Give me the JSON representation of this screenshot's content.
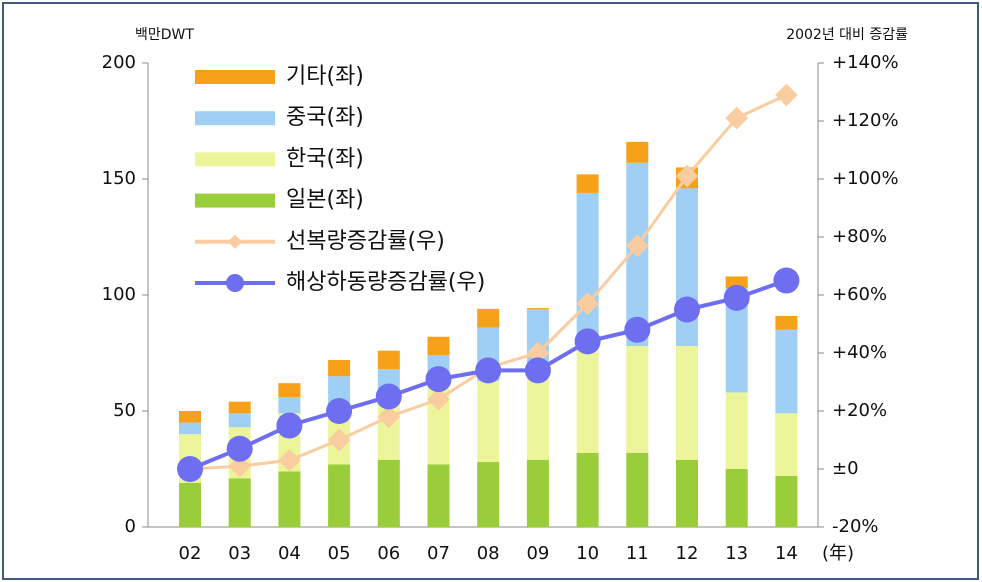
{
  "chart_data": {
    "type": "bar",
    "left_unit": "백만DWT",
    "right_unit": "2002년 대비 증감률",
    "x_unit": "(年)",
    "categories": [
      "02",
      "03",
      "04",
      "05",
      "06",
      "07",
      "08",
      "09",
      "10",
      "11",
      "12",
      "13",
      "14"
    ],
    "series": [
      {
        "name": "일본(좌)",
        "type": "bar",
        "color": "#9acd3a",
        "values": [
          19,
          21,
          24,
          27,
          29,
          27,
          28,
          29,
          32,
          32,
          29,
          25,
          22
        ]
      },
      {
        "name": "한국(좌)",
        "type": "bar",
        "color": "#edf59a",
        "values": [
          21,
          22,
          25,
          25,
          29,
          40,
          35,
          39,
          48,
          46,
          49,
          33,
          27
        ]
      },
      {
        "name": "중국(좌)",
        "type": "bar",
        "color": "#9fcff5",
        "values": [
          5,
          6,
          7,
          13,
          10,
          7,
          23,
          26,
          64,
          79,
          68,
          45,
          36
        ]
      },
      {
        "name": "기타(좌)",
        "type": "bar",
        "color": "#f7a11a",
        "values": [
          5,
          5,
          6,
          7,
          8,
          8,
          8,
          6,
          8,
          9,
          9,
          5,
          6
        ]
      },
      {
        "name": "선복량증감률(우)",
        "type": "line",
        "marker": "diamond",
        "axis": "y2",
        "color": "#f9cd9f",
        "values": [
          0,
          1,
          3,
          10,
          18,
          24,
          35,
          40,
          57,
          77,
          101,
          121,
          129
        ]
      },
      {
        "name": "해상하동량증감률(우)",
        "type": "line",
        "marker": "circle",
        "axis": "y2",
        "color": "#6e6ef0",
        "values": [
          0,
          7,
          15,
          20,
          25,
          31,
          34,
          34,
          44,
          48,
          55,
          59,
          65
        ]
      }
    ],
    "ylim": [
      0,
      200
    ],
    "yticks": [
      0,
      50,
      100,
      150,
      200
    ],
    "y2lim": [
      -20,
      140
    ],
    "y2ticks": [
      {
        "value": -20,
        "label": "-20%"
      },
      {
        "value": 0,
        "label": "±0"
      },
      {
        "value": 20,
        "label": "+20%"
      },
      {
        "value": 40,
        "label": "+40%"
      },
      {
        "value": 60,
        "label": "+60%"
      },
      {
        "value": 80,
        "label": "+80%"
      },
      {
        "value": 100,
        "label": "+100%"
      },
      {
        "value": 120,
        "label": "+120%"
      },
      {
        "value": 140,
        "label": "+140%"
      }
    ]
  }
}
